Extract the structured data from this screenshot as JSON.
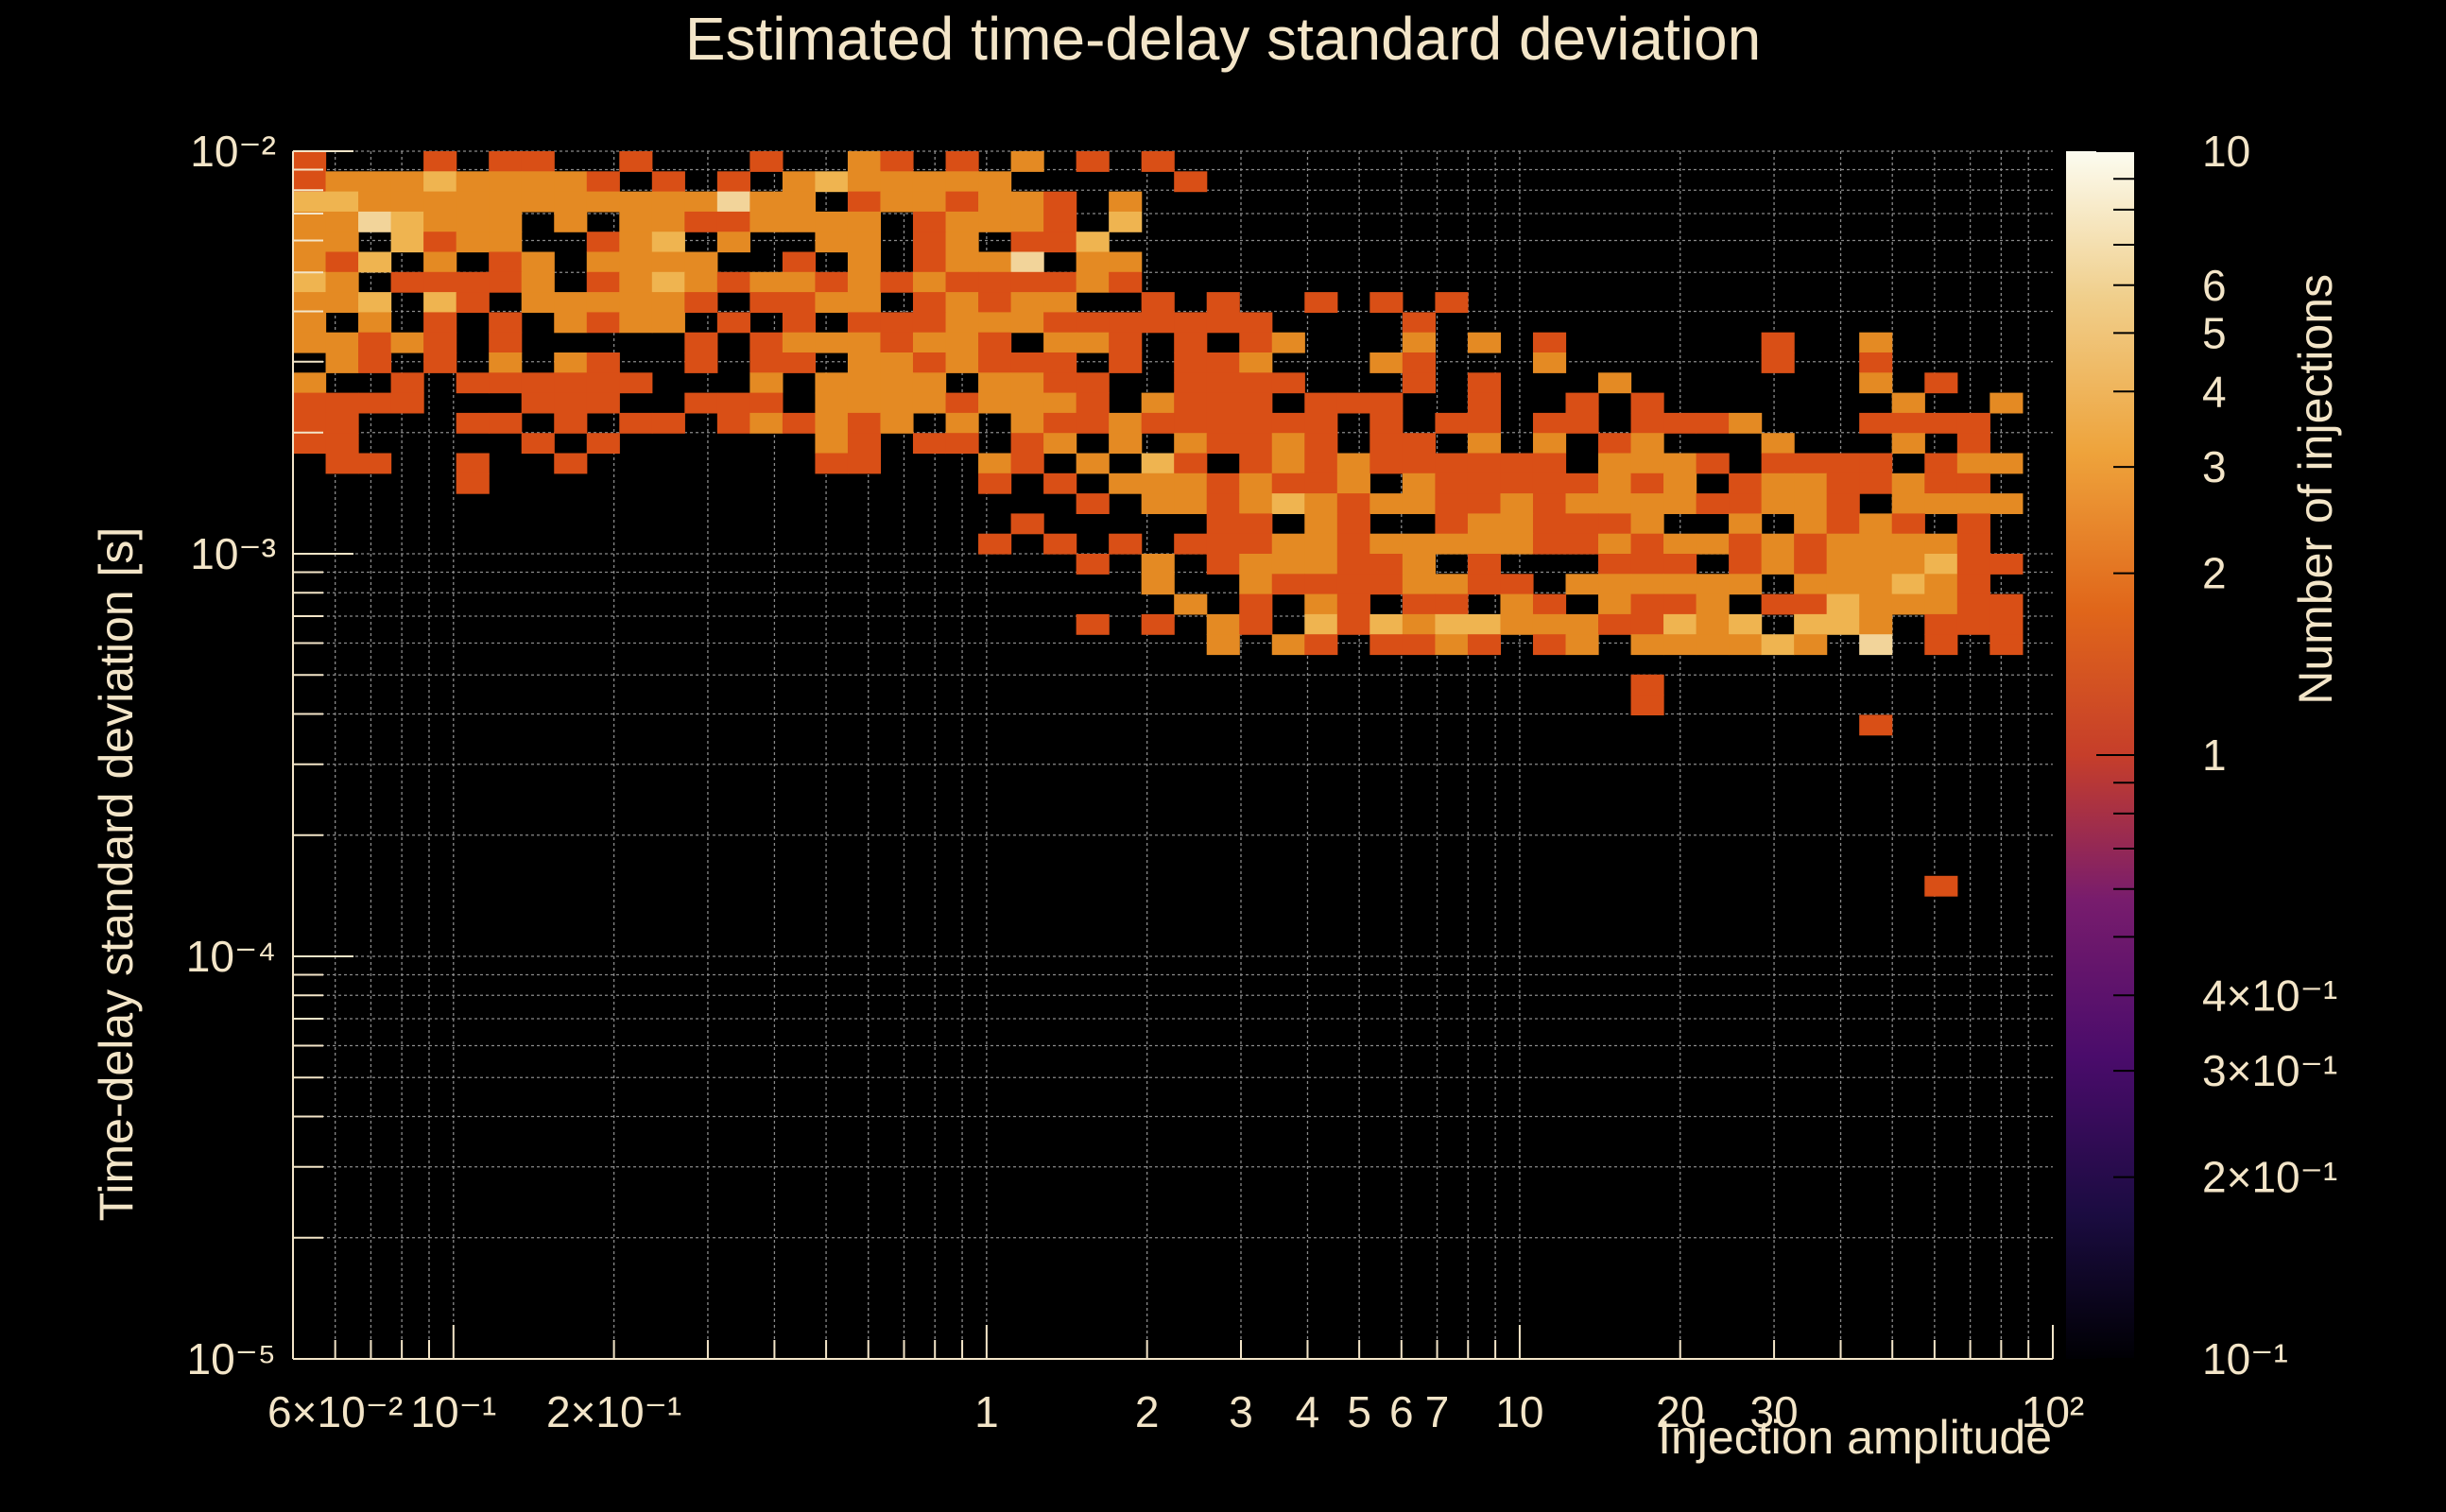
{
  "chart_data": {
    "type": "heatmap",
    "title": "Estimated time-delay standard deviation",
    "xlabel": "Injection amplitude",
    "ylabel": "Time-delay standard deviation [s]",
    "colorbar_label": "Number of injections",
    "x_scale": "log",
    "y_scale": "log",
    "z_scale": "log",
    "xlim": [
      0.05,
      100
    ],
    "ylim": [
      1e-05,
      0.01
    ],
    "zlim": [
      0.1,
      10
    ],
    "grid": true,
    "x_tick_labels": [
      {
        "v": 0.06,
        "label": "6×10⁻²"
      },
      {
        "v": 0.1,
        "label": "10⁻¹"
      },
      {
        "v": 0.2,
        "label": "2×10⁻¹"
      },
      {
        "v": 1,
        "label": "1"
      },
      {
        "v": 2,
        "label": "2"
      },
      {
        "v": 3,
        "label": "3"
      },
      {
        "v": 4,
        "label": "4"
      },
      {
        "v": 5,
        "label": "5"
      },
      {
        "v": 6,
        "label": "6"
      },
      {
        "v": 7,
        "label": "7"
      },
      {
        "v": 10,
        "label": "10"
      },
      {
        "v": 20,
        "label": "20"
      },
      {
        "v": 30,
        "label": "30"
      },
      {
        "v": 100,
        "label": "10²"
      }
    ],
    "y_tick_labels": [
      {
        "v": 1e-05,
        "label": "10⁻⁵"
      },
      {
        "v": 0.0001,
        "label": "10⁻⁴"
      },
      {
        "v": 0.001,
        "label": "10⁻³"
      },
      {
        "v": 0.01,
        "label": "10⁻²"
      }
    ],
    "z_tick_labels": [
      {
        "v": 0.1,
        "label": "10⁻¹"
      },
      {
        "v": 0.2,
        "label": "2×10⁻¹"
      },
      {
        "v": 0.3,
        "label": "3×10⁻¹"
      },
      {
        "v": 0.4,
        "label": "4×10⁻¹"
      },
      {
        "v": 1,
        "label": "1"
      },
      {
        "v": 2,
        "label": "2"
      },
      {
        "v": 3,
        "label": "3"
      },
      {
        "v": 4,
        "label": "4"
      },
      {
        "v": 5,
        "label": "5"
      },
      {
        "v": 6,
        "label": "6"
      },
      {
        "v": 10,
        "label": "10"
      }
    ],
    "bins": {
      "x_edges_log10": [
        -1.301,
        -1.2398,
        -1.1786,
        -1.1174,
        -1.0562,
        -0.9949,
        -0.9337,
        -0.8725,
        -0.8113,
        -0.7501,
        -0.6889,
        -0.6277,
        -0.5665,
        -0.5053,
        -0.4441,
        -0.3829,
        -0.3217,
        -0.2605,
        -0.1993,
        -0.1381,
        -0.0768,
        -0.0156,
        0.0456,
        0.1068,
        0.168,
        0.2292,
        0.2904,
        0.3516,
        0.4128,
        0.474,
        0.5352,
        0.5964,
        0.6576,
        0.7188,
        0.78,
        0.8413,
        0.9025,
        0.9637,
        1.0249,
        1.0861,
        1.1473,
        1.2085,
        1.2697,
        1.3309,
        1.3921,
        1.4533,
        1.5145,
        1.5757,
        1.6369,
        1.6981,
        1.7594,
        1.8206,
        1.8818,
        1.943,
        2.0
      ],
      "y_edges_log10": [
        -5.0,
        -4.95,
        -4.9,
        -4.85,
        -4.8,
        -4.75,
        -4.7,
        -4.65,
        -4.6,
        -4.55,
        -4.5,
        -4.45,
        -4.4,
        -4.35,
        -4.3,
        -4.25,
        -4.2,
        -4.15,
        -4.1,
        -4.05,
        -4.0,
        -3.95,
        -3.9,
        -3.85,
        -3.8,
        -3.75,
        -3.7,
        -3.65,
        -3.6,
        -3.55,
        -3.5,
        -3.45,
        -3.4,
        -3.35,
        -3.3,
        -3.25,
        -3.2,
        -3.15,
        -3.1,
        -3.05,
        -3.0,
        -2.95,
        -2.9,
        -2.85,
        -2.8,
        -2.75,
        -2.7,
        -2.65,
        -2.6,
        -2.55,
        -2.5,
        -2.45,
        -2.4,
        -2.35,
        -2.3,
        -2.25,
        -2.2,
        -2.15,
        -2.1,
        -2.05,
        -2.0
      ],
      "rows_from_top": [
        "1...1.11..1...1..21.1.2.1.1..........................",
        "1222322221.1.1.2322222.....1.........................",
        "3322222222222422.1221221.2..........................",
        "2243222.2.22112222.12221.3...........................",
        "22.3122..123.2..22.12.113............................",
        "213.2.12.2222..1.2.1224.22...........................",
        "32.11112.12321221212111121...........................",
        "223.31.222221.1122.12122..1.1..1.1.1.................",
        "2.2.1.1.2122.1.1.1112221111111....1..................",
        "22121.1.....1.12221221.221.1.12...2.2.1......1..2....",
        ".21.1.2.21..1.11.2212111.1.112...21...2......1..1....",
        "2..1.111111...2.2222.2211..1111...1.1...2.......2.1..",
        "1111...111..111.222212221.2111.111..1..1.1.......2..2",
        "11...11.1.11.121212.2.2112111111.1.11.11.1112...1111.",
        "11.....1.1......21.11.12.2.21121.11.2.2.12...2...2.1.",
        ".11..1..1.......11...21.2.31.1212111111.2221.1111.122",
        ".....1...............1.1.22212112.211111212.12211211.",
        "........................1.2212321221121222211221.2222",
        "......................1.....11.21..1221112..2.2121.1.",
        ".....................1.1.1.1112212222211212212122221.",
        "........................1.2.1222112.1...111.121222311",
        "..........................2..211112211.222222.222321.",
        "...........................2.1.21.11.21.2112.11322211",
        "........................1.1.21.31323322211323.332.111",
        "............................2.21.1121.12.222232.4.1.1",
        ".....................................................",
        ".........................................1...........",
        ".........................................1...........",
        "................................................1....",
        ".....................................................",
        ".....................................................",
        ".....................................................",
        ".....................................................",
        ".....................................................",
        ".....................................................",
        ".....................................................",
        "..................................................1..",
        ".....................................................",
        ".....................................................",
        ".....................................................",
        ".....................................................",
        ".....................................................",
        ".....................................................",
        ".....................................................",
        ".....................................................",
        ".....................................................",
        ".....................................................",
        ".....................................................",
        ".....................................................",
        ".....................................................",
        ".....................................................",
        ".....................................................",
        ".....................................................",
        ".....................................................",
        ".....................................................",
        ".....................................................",
        ".....................................................",
        ".....................................................",
        ".....................................................",
        "....................................................."
      ]
    }
  }
}
